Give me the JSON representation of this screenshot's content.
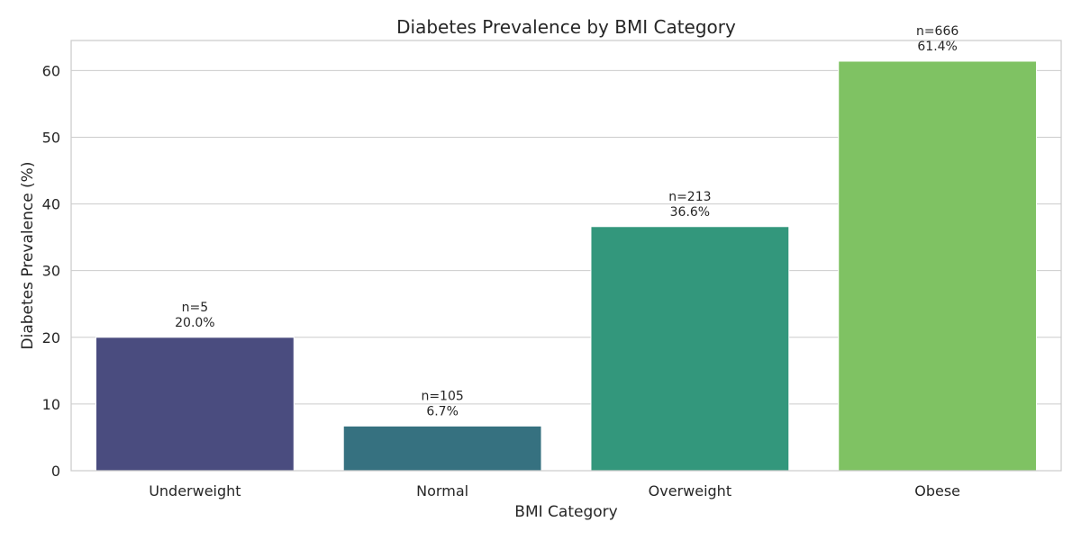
{
  "chart_data": {
    "type": "bar",
    "title": "Diabetes Prevalence by BMI Category",
    "xlabel": "BMI Category",
    "ylabel": "Diabetes Prevalence (%)",
    "ylim": [
      0,
      64.5
    ],
    "yticks": [
      0,
      10,
      20,
      30,
      40,
      50,
      60
    ],
    "categories": [
      "Underweight",
      "Normal",
      "Overweight",
      "Obese"
    ],
    "values": [
      20.0,
      6.7,
      36.6,
      61.4
    ],
    "n_labels": [
      "n=5",
      "n=105",
      "n=213",
      "n=666"
    ],
    "value_labels": [
      "20.0%",
      "6.7%",
      "36.6%",
      "61.4%"
    ],
    "colors": [
      "#4a4c7f",
      "#367180",
      "#33977c",
      "#7fc263"
    ],
    "grid": true,
    "legend": "none"
  }
}
